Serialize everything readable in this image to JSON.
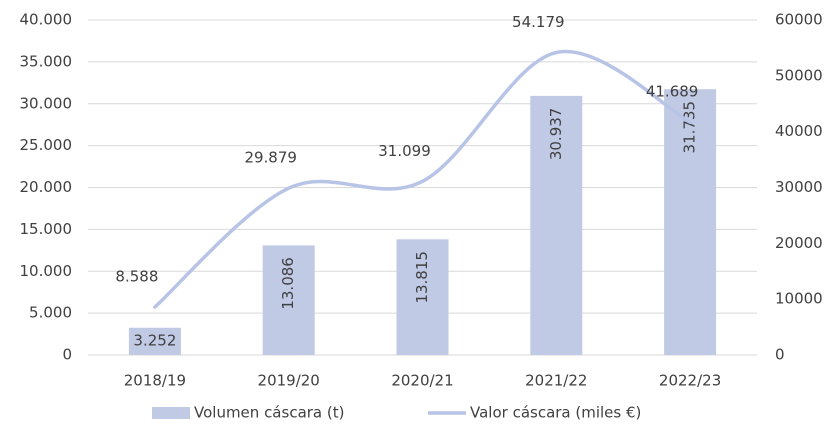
{
  "chart_data": {
    "type": "bar",
    "categories": [
      "2018/19",
      "2019/20",
      "2020/21",
      "2021/22",
      "2022/23"
    ],
    "series": [
      {
        "name": "Volumen cáscara (t)",
        "type": "bar",
        "color": "#c1cae5",
        "values": [
          3252,
          13086,
          13815,
          30937,
          31735
        ],
        "value_labels": [
          "3.252",
          "13.086",
          "13.815",
          "30.937",
          "31.735"
        ]
      },
      {
        "name": "Valor cáscara (miles €)",
        "type": "line",
        "axis": "y2",
        "color": "#b7c4e6",
        "values": [
          8588,
          29879,
          31099,
          54179,
          41689
        ],
        "value_labels": [
          "8.588",
          "29.879",
          "31.099",
          "54.179",
          "41.689"
        ]
      }
    ],
    "ylim": [
      0,
      40000
    ],
    "yticks": [
      0,
      {
        "value": 5000,
        "label": "5.000"
      },
      {
        "value": 10000,
        "label": "10.000"
      },
      {
        "value": 15000,
        "label": "15.000"
      },
      {
        "value": 20000,
        "label": "20.000"
      },
      {
        "value": 25000,
        "label": "25.000"
      },
      {
        "value": 30000,
        "label": "30.000"
      },
      {
        "value": 35000,
        "label": "35.000"
      },
      {
        "value": 40000,
        "label": "40.000"
      }
    ],
    "y2lim": [
      0,
      60000
    ],
    "y2ticks": [
      0,
      10000,
      20000,
      30000,
      40000,
      50000,
      60000
    ],
    "grid": true,
    "legend": "bottom"
  }
}
